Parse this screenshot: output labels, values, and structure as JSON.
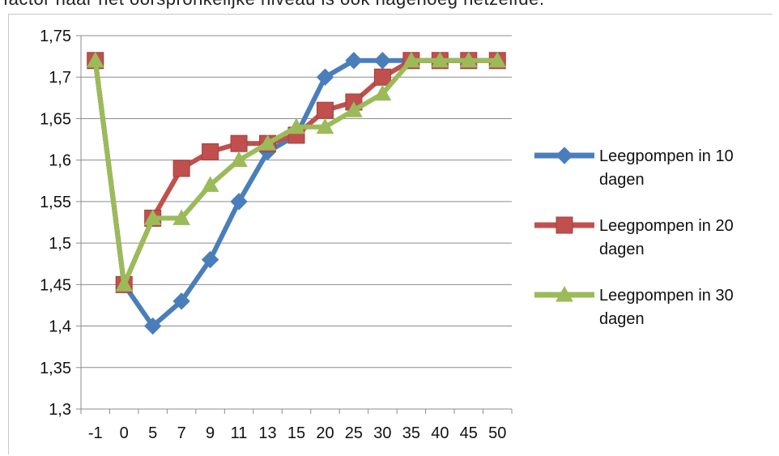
{
  "header": {
    "text": "factor naar het oorspronkelijke niveau is ook nagenoeg hetzelfde."
  },
  "colors": {
    "series1": "#4a7ebb",
    "series2": "#c0504d",
    "series3": "#9bbb59",
    "grid": "#8c8c8c",
    "axis": "#8c8c8c"
  },
  "chart_data": {
    "type": "line",
    "categories": [
      "-1",
      "0",
      "5",
      "7",
      "9",
      "11",
      "13",
      "15",
      "20",
      "25",
      "30",
      "35",
      "40",
      "45",
      "50"
    ],
    "ylim": [
      1.3,
      1.75
    ],
    "yticks": [
      "1,3",
      "1,35",
      "1,4",
      "1,45",
      "1,5",
      "1,55",
      "1,6",
      "1,65",
      "1,7",
      "1,75"
    ],
    "ytick_values": [
      1.3,
      1.35,
      1.4,
      1.45,
      1.5,
      1.55,
      1.6,
      1.65,
      1.7,
      1.75
    ],
    "grid": true,
    "legend_position": "right",
    "series": [
      {
        "name_line1": "Leegpompen in 10",
        "name_line2": "dagen",
        "marker": "diamond",
        "values": [
          1.72,
          1.45,
          1.4,
          1.43,
          1.48,
          1.55,
          1.61,
          1.63,
          1.7,
          1.72,
          1.72,
          1.72,
          1.72,
          1.72,
          1.72
        ]
      },
      {
        "name_line1": "Leegpompen in 20",
        "name_line2": "dagen",
        "marker": "square",
        "values": [
          1.72,
          1.45,
          1.53,
          1.59,
          1.61,
          1.62,
          1.62,
          1.63,
          1.66,
          1.67,
          1.7,
          1.72,
          1.72,
          1.72,
          1.72
        ]
      },
      {
        "name_line1": "Leegpompen in 30",
        "name_line2": "dagen",
        "marker": "triangle",
        "values": [
          1.72,
          1.45,
          1.53,
          1.53,
          1.57,
          1.6,
          1.62,
          1.64,
          1.64,
          1.66,
          1.68,
          1.72,
          1.72,
          1.72,
          1.72
        ]
      }
    ]
  }
}
